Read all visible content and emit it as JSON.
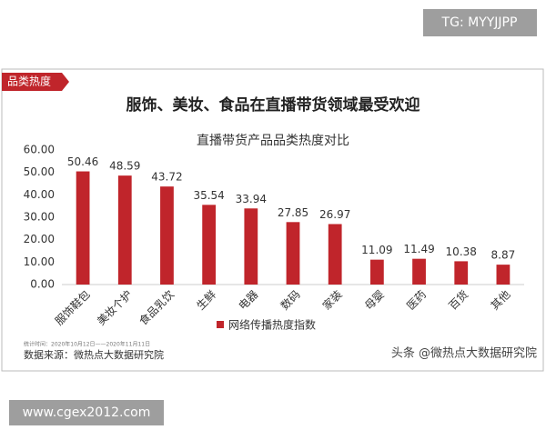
{
  "overlay": {
    "tg": "TG: MYYJJPP",
    "url": "www.cgex2012.com"
  },
  "card": {
    "tag": "品类热度",
    "headline": "服饰、美妆、食品在直播带货领域最受欢迎",
    "stat_time": "统计时间：2020年10月12日——2020年11月11日",
    "source": "数据来源：微热点大数据研究院",
    "watermark": "头条 @微热点大数据研究院"
  },
  "chart_data": {
    "type": "bar",
    "title": "直播带货产品品类热度对比",
    "categories": [
      "服饰鞋包",
      "美妆个护",
      "食品乳饮",
      "生鲜",
      "电器",
      "数码",
      "家装",
      "母婴",
      "医药",
      "百货",
      "其他"
    ],
    "series": [
      {
        "name": "网络传播热度指数",
        "color": "#c0252b",
        "values": [
          50.46,
          48.59,
          43.72,
          35.54,
          33.94,
          27.85,
          26.97,
          11.09,
          11.49,
          10.38,
          8.87
        ]
      }
    ],
    "ylim": [
      0,
      60
    ],
    "yticks": [
      {
        "value": 0,
        "label": "0.00"
      },
      {
        "value": 10,
        "label": "10.00"
      },
      {
        "value": 20,
        "label": "20.00"
      },
      {
        "value": 30,
        "label": "30.00"
      },
      {
        "value": 40,
        "label": "40.00"
      },
      {
        "value": 50,
        "label": "50.00"
      },
      {
        "value": 60,
        "label": "60.00"
      }
    ],
    "grid": false
  }
}
